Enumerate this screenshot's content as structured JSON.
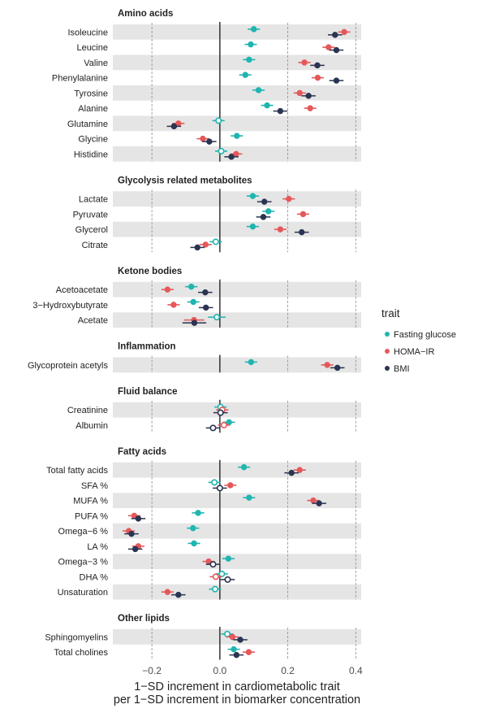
{
  "chart_data": {
    "type": "scatter",
    "subtype": "forest-plot",
    "xlabel": [
      "1−SD increment in cardiometabolic trait",
      "per 1−SD increment in biomarker concentration"
    ],
    "xlim": [
      -0.315,
      0.416
    ],
    "xticks": [
      -0.2,
      0.0,
      0.2,
      0.4
    ],
    "xtick_labels": [
      "−0.2",
      "0.0",
      "0.2",
      "0.4"
    ],
    "grid": "dashed vertical at ticks",
    "legend": {
      "title": "trait",
      "placement": "right"
    },
    "point_format": "[estimate, ci_lower, ci_upper, significant(1=filled,0=open)]",
    "series": [
      {
        "name": "Fasting glucose",
        "color": "#1fb5b0"
      },
      {
        "name": "HOMA−IR",
        "color": "#e5585a"
      },
      {
        "name": "BMI",
        "color": "#2b3450"
      }
    ],
    "groups": [
      {
        "title": "Amino acids",
        "rows": [
          {
            "label": "Isoleucine",
            "points": [
              [
                0.1,
                0.082,
                0.118,
                1
              ],
              [
                0.366,
                0.348,
                0.384,
                1
              ],
              [
                0.339,
                0.318,
                0.36,
                1
              ]
            ]
          },
          {
            "label": "Leucine",
            "points": [
              [
                0.091,
                0.073,
                0.109,
                1
              ],
              [
                0.32,
                0.302,
                0.338,
                1
              ],
              [
                0.343,
                0.322,
                0.364,
                1
              ]
            ]
          },
          {
            "label": "Valine",
            "points": [
              [
                0.086,
                0.068,
                0.104,
                1
              ],
              [
                0.249,
                0.231,
                0.267,
                1
              ],
              [
                0.287,
                0.266,
                0.308,
                1
              ]
            ]
          },
          {
            "label": "Phenylalanine",
            "points": [
              [
                0.075,
                0.057,
                0.093,
                1
              ],
              [
                0.288,
                0.27,
                0.306,
                1
              ],
              [
                0.343,
                0.322,
                0.364,
                1
              ]
            ]
          },
          {
            "label": "Tyrosine",
            "points": [
              [
                0.114,
                0.096,
                0.132,
                1
              ],
              [
                0.235,
                0.217,
                0.253,
                1
              ],
              [
                0.261,
                0.24,
                0.282,
                1
              ]
            ]
          },
          {
            "label": "Alanine",
            "points": [
              [
                0.139,
                0.121,
                0.157,
                1
              ],
              [
                0.266,
                0.248,
                0.284,
                1
              ],
              [
                0.178,
                0.157,
                0.199,
                1
              ]
            ]
          },
          {
            "label": "Glutamine",
            "points": [
              [
                -0.004,
                -0.022,
                0.014,
                0
              ],
              [
                -0.122,
                -0.14,
                -0.104,
                1
              ],
              [
                -0.135,
                -0.156,
                -0.114,
                1
              ]
            ]
          },
          {
            "label": "Glycine",
            "points": [
              [
                0.05,
                0.032,
                0.068,
                1
              ],
              [
                -0.05,
                -0.068,
                -0.032,
                1
              ],
              [
                -0.031,
                -0.052,
                -0.01,
                1
              ]
            ]
          },
          {
            "label": "Histidine",
            "points": [
              [
                0.004,
                -0.014,
                0.022,
                0
              ],
              [
                0.048,
                0.03,
                0.066,
                1
              ],
              [
                0.034,
                0.013,
                0.055,
                1
              ]
            ]
          }
        ]
      },
      {
        "title": "Glycolysis related metabolites",
        "rows": [
          {
            "label": "Lactate",
            "points": [
              [
                0.097,
                0.079,
                0.115,
                1
              ],
              [
                0.203,
                0.185,
                0.221,
                1
              ],
              [
                0.131,
                0.11,
                0.152,
                1
              ]
            ]
          },
          {
            "label": "Pyruvate",
            "points": [
              [
                0.143,
                0.125,
                0.161,
                1
              ],
              [
                0.245,
                0.227,
                0.263,
                1
              ],
              [
                0.128,
                0.107,
                0.149,
                1
              ]
            ]
          },
          {
            "label": "Glycerol",
            "points": [
              [
                0.097,
                0.079,
                0.115,
                1
              ],
              [
                0.178,
                0.16,
                0.196,
                1
              ],
              [
                0.241,
                0.22,
                0.262,
                1
              ]
            ]
          },
          {
            "label": "Citrate",
            "points": [
              [
                -0.012,
                -0.03,
                0.006,
                0
              ],
              [
                -0.042,
                -0.06,
                -0.024,
                1
              ],
              [
                -0.066,
                -0.087,
                -0.045,
                1
              ]
            ]
          }
        ]
      },
      {
        "title": "Ketone bodies",
        "rows": [
          {
            "label": "Acetoacetate",
            "points": [
              [
                -0.084,
                -0.102,
                -0.066,
                1
              ],
              [
                -0.154,
                -0.172,
                -0.136,
                1
              ],
              [
                -0.043,
                -0.064,
                -0.022,
                1
              ]
            ]
          },
          {
            "label": "3−Hydroxybutyrate",
            "points": [
              [
                -0.078,
                -0.096,
                -0.06,
                1
              ],
              [
                -0.136,
                -0.154,
                -0.118,
                1
              ],
              [
                -0.041,
                -0.062,
                -0.02,
                1
              ]
            ]
          },
          {
            "label": "Acetate",
            "points": [
              [
                -0.009,
                -0.035,
                0.017,
                0
              ],
              [
                -0.076,
                -0.106,
                -0.046,
                1
              ],
              [
                -0.075,
                -0.11,
                -0.04,
                1
              ]
            ]
          }
        ]
      },
      {
        "title": "Inflammation",
        "rows": [
          {
            "label": "Glycoprotein acetyls",
            "points": [
              [
                0.092,
                0.074,
                0.11,
                1
              ],
              [
                0.316,
                0.298,
                0.334,
                1
              ],
              [
                0.346,
                0.325,
                0.367,
                1
              ]
            ]
          }
        ]
      },
      {
        "title": "Fluid balance",
        "rows": [
          {
            "label": "Creatinine",
            "points": [
              [
                0.002,
                -0.016,
                0.02,
                0
              ],
              [
                0.007,
                -0.011,
                0.025,
                0
              ],
              [
                0.002,
                -0.019,
                0.023,
                0
              ]
            ]
          },
          {
            "label": "Albumin",
            "points": [
              [
                0.027,
                0.009,
                0.045,
                1
              ],
              [
                0.012,
                -0.006,
                0.03,
                0
              ],
              [
                -0.02,
                -0.041,
                0.001,
                0
              ]
            ]
          }
        ]
      },
      {
        "title": "Fatty acids",
        "rows": [
          {
            "label": "Total fatty acids",
            "points": [
              [
                0.071,
                0.053,
                0.089,
                1
              ],
              [
                0.235,
                0.217,
                0.253,
                1
              ],
              [
                0.211,
                0.19,
                0.232,
                1
              ]
            ]
          },
          {
            "label": "SFA %",
            "points": [
              [
                -0.016,
                -0.034,
                0.002,
                0
              ],
              [
                0.031,
                0.013,
                0.049,
                1
              ],
              [
                0.0,
                -0.021,
                0.021,
                0
              ]
            ]
          },
          {
            "label": "MUFA %",
            "points": [
              [
                0.086,
                0.068,
                0.104,
                1
              ],
              [
                0.275,
                0.257,
                0.293,
                1
              ],
              [
                0.292,
                0.271,
                0.313,
                1
              ]
            ]
          },
          {
            "label": "PUFA %",
            "points": [
              [
                -0.064,
                -0.082,
                -0.046,
                1
              ],
              [
                -0.252,
                -0.27,
                -0.234,
                1
              ],
              [
                -0.24,
                -0.261,
                -0.219,
                1
              ]
            ]
          },
          {
            "label": "Omega−6 %",
            "points": [
              [
                -0.079,
                -0.097,
                -0.061,
                1
              ],
              [
                -0.268,
                -0.286,
                -0.25,
                1
              ],
              [
                -0.26,
                -0.281,
                -0.239,
                1
              ]
            ]
          },
          {
            "label": "LA %",
            "points": [
              [
                -0.076,
                -0.094,
                -0.058,
                1
              ],
              [
                -0.24,
                -0.258,
                -0.222,
                1
              ],
              [
                -0.249,
                -0.27,
                -0.228,
                1
              ]
            ]
          },
          {
            "label": "Omega−3 %",
            "points": [
              [
                0.025,
                0.007,
                0.043,
                1
              ],
              [
                -0.033,
                -0.051,
                -0.015,
                1
              ],
              [
                -0.02,
                -0.041,
                0.001,
                0
              ]
            ]
          },
          {
            "label": "DHA %",
            "points": [
              [
                0.006,
                -0.012,
                0.024,
                0
              ],
              [
                -0.012,
                -0.03,
                0.006,
                0
              ],
              [
                0.023,
                0.002,
                0.044,
                0
              ]
            ]
          },
          {
            "label": "Unsaturation",
            "points": [
              [
                -0.014,
                -0.032,
                0.004,
                0
              ],
              [
                -0.154,
                -0.172,
                -0.136,
                1
              ],
              [
                -0.122,
                -0.143,
                -0.101,
                1
              ]
            ]
          }
        ]
      },
      {
        "title": "Other lipids",
        "rows": [
          {
            "label": "Sphingomyelins",
            "points": [
              [
                0.022,
                0.004,
                0.04,
                0
              ],
              [
                0.037,
                0.019,
                0.055,
                1
              ],
              [
                0.06,
                0.039,
                0.081,
                1
              ]
            ]
          },
          {
            "label": "Total cholines",
            "points": [
              [
                0.041,
                0.023,
                0.059,
                1
              ],
              [
                0.085,
                0.067,
                0.103,
                1
              ],
              [
                0.049,
                0.028,
                0.07,
                1
              ]
            ]
          }
        ]
      }
    ]
  }
}
